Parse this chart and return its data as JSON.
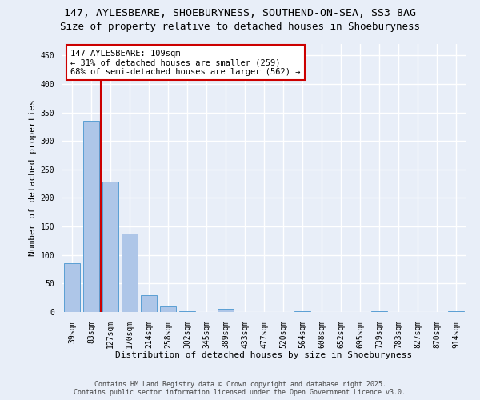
{
  "title_line1": "147, AYLESBEARE, SHOEBURYNESS, SOUTHEND-ON-SEA, SS3 8AG",
  "title_line2": "Size of property relative to detached houses in Shoeburyness",
  "xlabel": "Distribution of detached houses by size in Shoeburyness",
  "ylabel": "Number of detached properties",
  "categories": [
    "39sqm",
    "83sqm",
    "127sqm",
    "170sqm",
    "214sqm",
    "258sqm",
    "302sqm",
    "345sqm",
    "389sqm",
    "433sqm",
    "477sqm",
    "520sqm",
    "564sqm",
    "608sqm",
    "652sqm",
    "695sqm",
    "739sqm",
    "783sqm",
    "827sqm",
    "870sqm",
    "914sqm"
  ],
  "values": [
    85,
    336,
    229,
    138,
    30,
    10,
    2,
    0,
    5,
    0,
    0,
    0,
    1,
    0,
    0,
    0,
    1,
    0,
    0,
    0,
    2
  ],
  "bar_color": "#aec6e8",
  "bar_edge_color": "#5a9fd4",
  "vline_color": "#cc0000",
  "annotation_text": "147 AYLESBEARE: 109sqm\n← 31% of detached houses are smaller (259)\n68% of semi-detached houses are larger (562) →",
  "annotation_box_color": "#ffffff",
  "annotation_box_edge": "#cc0000",
  "ylim": [
    0,
    470
  ],
  "yticks": [
    0,
    50,
    100,
    150,
    200,
    250,
    300,
    350,
    400,
    450
  ],
  "background_color": "#e8eef8",
  "plot_bg_color": "#e8eef8",
  "grid_color": "#ffffff",
  "footer_line1": "Contains HM Land Registry data © Crown copyright and database right 2025.",
  "footer_line2": "Contains public sector information licensed under the Open Government Licence v3.0.",
  "title_fontsize": 9.5,
  "subtitle_fontsize": 9,
  "axis_label_fontsize": 8,
  "tick_fontsize": 7,
  "annotation_fontsize": 7.5,
  "footer_fontsize": 6
}
